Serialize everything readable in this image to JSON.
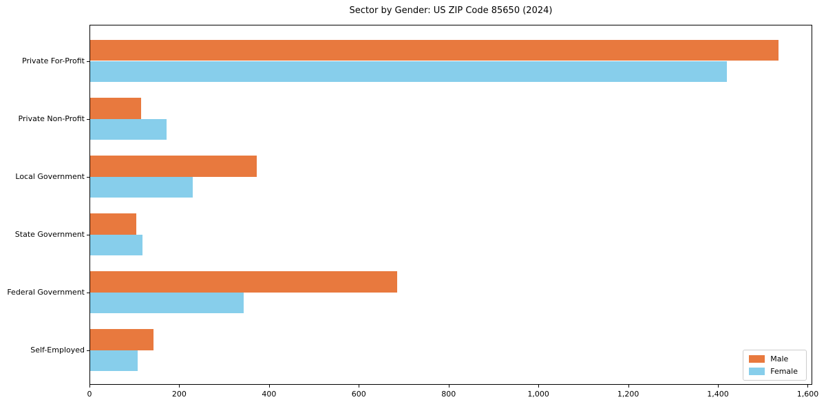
{
  "chart_data": {
    "type": "bar",
    "orientation": "horizontal",
    "title": "Sector by Gender: US ZIP Code 85650 (2024)",
    "categories": [
      "Private For-Profit",
      "Private Non-Profit",
      "Local Government",
      "State Government",
      "Federal Government",
      "Self-Employed"
    ],
    "series": [
      {
        "name": "Male",
        "color": "#e8793e",
        "values": [
          1533,
          114,
          371,
          102,
          684,
          141
        ]
      },
      {
        "name": "Female",
        "color": "#87ceeb",
        "values": [
          1419,
          170,
          229,
          117,
          342,
          106
        ]
      }
    ],
    "xlabel": "",
    "ylabel": "",
    "xlim": [
      0,
      1610
    ],
    "xticks": {
      "values": [
        0,
        200,
        400,
        600,
        800,
        1000,
        1200,
        1400,
        1600
      ],
      "labels": [
        "0",
        "200",
        "400",
        "600",
        "800",
        "1,000",
        "1,200",
        "1,400",
        "1,600"
      ]
    },
    "legend": {
      "position": "lower right",
      "entries": [
        "Male",
        "Female"
      ]
    },
    "grid": false,
    "colors": {
      "male": "#e8793e",
      "female": "#87ceeb",
      "spine": "#000000",
      "background": "#ffffff"
    }
  }
}
